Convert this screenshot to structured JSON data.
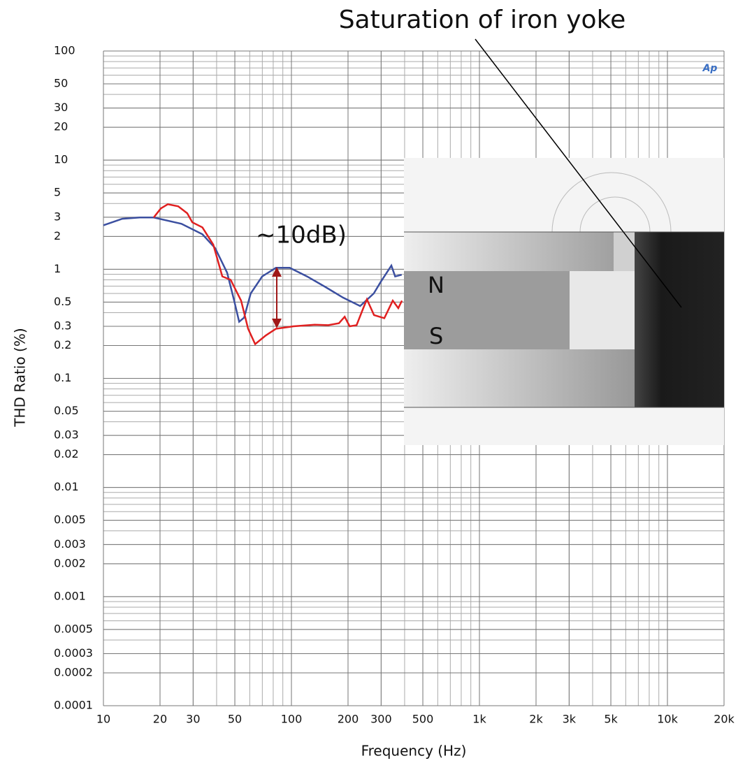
{
  "chart_data": {
    "type": "line",
    "xlabel": "Frequency (Hz)",
    "ylabel": "THD Ratio (%)",
    "log_x": true,
    "log_y": true,
    "grid": true,
    "xlim": [
      10,
      20000
    ],
    "ylim": [
      0.0001,
      100
    ],
    "xticks": [
      10,
      20,
      30,
      50,
      100,
      200,
      300,
      500,
      {
        "value": 1000,
        "label": "1k"
      },
      {
        "value": 2000,
        "label": "2k"
      },
      {
        "value": 3000,
        "label": "3k"
      },
      {
        "value": 5000,
        "label": "5k"
      },
      {
        "value": 10000,
        "label": "10k"
      },
      {
        "value": 20000,
        "label": "20k"
      }
    ],
    "yticks": [
      100,
      50,
      30,
      20,
      10,
      5,
      3,
      2,
      1,
      0.5,
      0.3,
      0.2,
      0.1,
      0.05,
      0.03,
      0.02,
      0.01,
      0.005,
      0.003,
      0.002,
      0.001,
      0.0005,
      0.0003,
      0.0002,
      0.0001
    ],
    "series": [
      {
        "color": "#3b4fa0",
        "x": [
          10,
          12.6,
          15.6,
          18.5,
          26,
          33.6,
          39.3,
          45.5,
          49.5,
          52.7,
          56,
          60.7,
          69.9,
          82.7,
          98,
          121,
          151,
          188,
          232,
          274,
          299,
          340,
          356,
          386
        ],
        "values": [
          2.53,
          2.9,
          2.98,
          2.98,
          2.61,
          2.09,
          1.56,
          0.93,
          0.52,
          0.33,
          0.36,
          0.6,
          0.86,
          1.03,
          1.03,
          0.86,
          0.69,
          0.55,
          0.46,
          0.6,
          0.77,
          1.08,
          0.86,
          0.89
        ]
      },
      {
        "color": "#e02020",
        "x": [
          18.5,
          20.2,
          22,
          25,
          27.9,
          29.7,
          33.6,
          38.4,
          42.9,
          47.5,
          54,
          58.8,
          64.1,
          72.8,
          82.8,
          102.6,
          133,
          157,
          179,
          192,
          204,
          222,
          241,
          252,
          275,
          312,
          346,
          370,
          387
        ],
        "values": [
          2.98,
          3.61,
          3.94,
          3.77,
          3.26,
          2.69,
          2.42,
          1.68,
          0.86,
          0.8,
          0.515,
          0.285,
          0.206,
          0.246,
          0.285,
          0.3,
          0.31,
          0.307,
          0.32,
          0.367,
          0.3,
          0.307,
          0.44,
          0.53,
          0.38,
          0.356,
          0.515,
          0.44,
          0.515
        ]
      }
    ],
    "annotations": [
      "Saturation of iron yoke",
      "~10dB)",
      "N",
      "S"
    ],
    "logo": "Ap"
  }
}
